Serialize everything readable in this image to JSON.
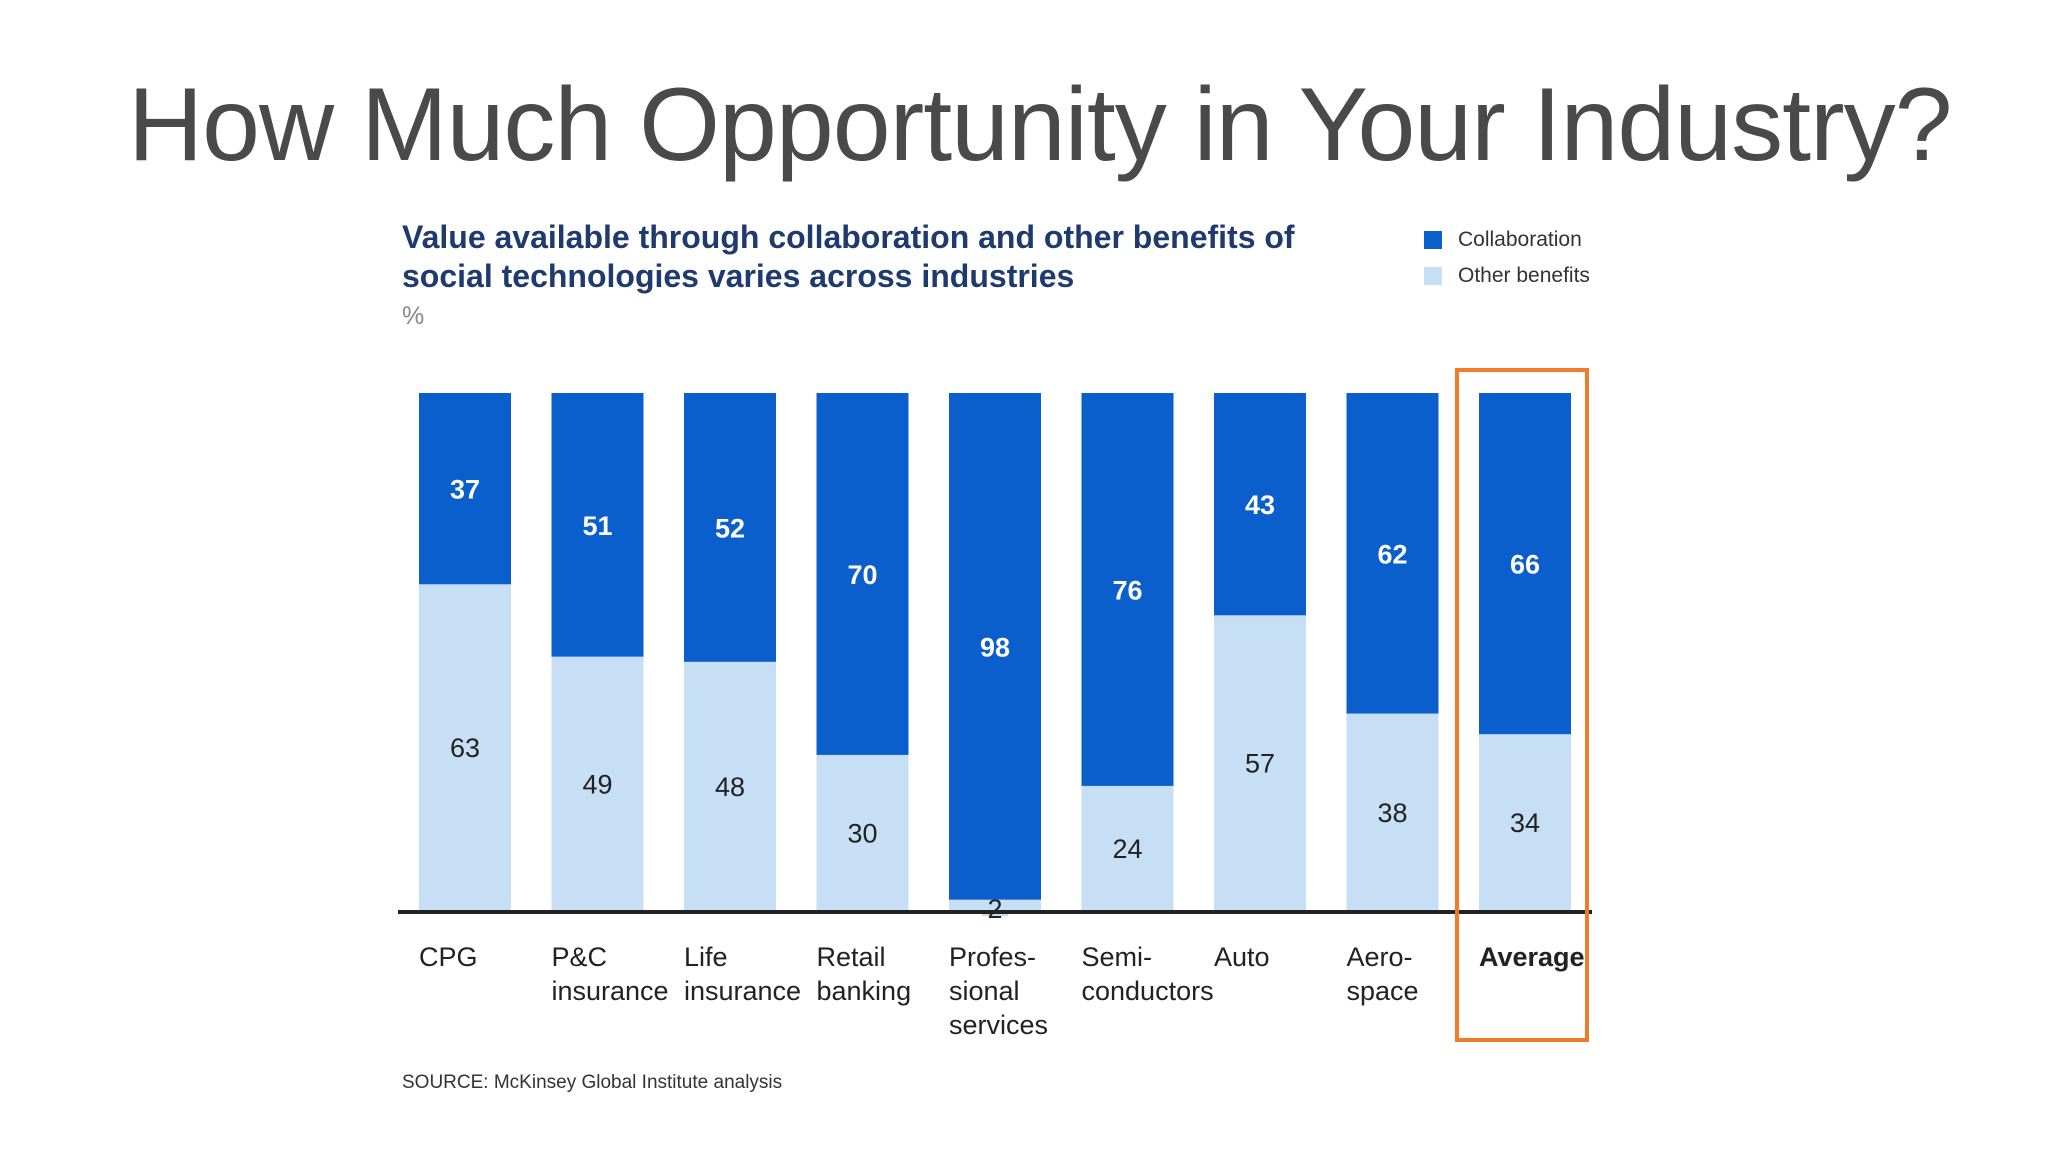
{
  "slide": {
    "title": "How Much Opportunity in Your Industry?"
  },
  "chart_data": {
    "type": "bar",
    "stacked": true,
    "percent": true,
    "title": "Value available through collaboration and other benefits of social technologies varies across industries",
    "unit": "%",
    "categories": [
      "CPG",
      "P&C insurance",
      "Life insurance",
      "Retail banking",
      "Profes-sional services",
      "Semi-conductors",
      "Auto",
      "Aero-space",
      "Average"
    ],
    "category_lines": [
      [
        "CPG"
      ],
      [
        "P&C",
        "insurance"
      ],
      [
        "Life",
        "insurance"
      ],
      [
        "Retail",
        "banking"
      ],
      [
        "Profes-",
        "sional",
        "services"
      ],
      [
        "Semi-",
        "conductors"
      ],
      [
        "Auto"
      ],
      [
        "Aero-",
        "space"
      ],
      [
        "Average"
      ]
    ],
    "series": [
      {
        "name": "Other benefits",
        "color": "#c6dff5",
        "label_color": "#222222",
        "values": [
          63,
          49,
          48,
          30,
          2,
          24,
          57,
          38,
          34
        ]
      },
      {
        "name": "Collaboration",
        "color": "#0a5fcc",
        "label_color": "#ffffff",
        "values": [
          37,
          51,
          52,
          70,
          98,
          76,
          43,
          62,
          66
        ]
      }
    ],
    "ylim": [
      0,
      100
    ],
    "highlight": "Average",
    "source": "SOURCE: McKinsey Global Institute analysis"
  }
}
